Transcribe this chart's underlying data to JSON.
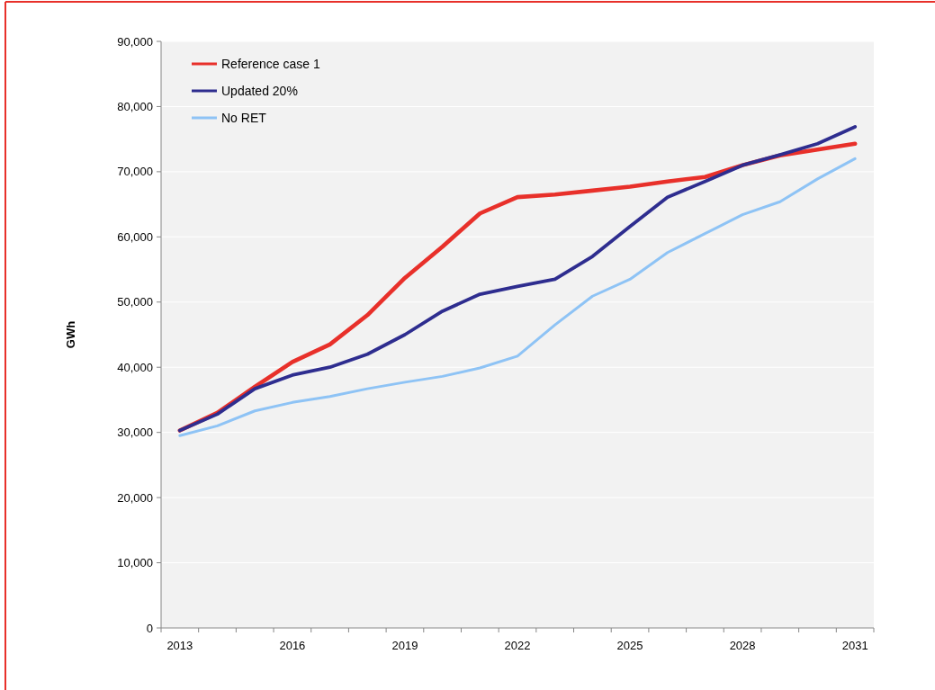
{
  "chart_data": {
    "type": "line",
    "ylabel": "GWh",
    "categories": [
      "2013",
      null,
      null,
      "2016",
      null,
      null,
      "2019",
      null,
      null,
      "2022",
      null,
      null,
      "2025",
      null,
      null,
      "2028",
      null,
      null,
      "2031"
    ],
    "ylim": [
      0,
      90000
    ],
    "yticks": [
      {
        "value": 0,
        "label": "0"
      },
      {
        "value": 10000,
        "label": "10,000"
      },
      {
        "value": 20000,
        "label": "20,000"
      },
      {
        "value": 30000,
        "label": "30,000"
      },
      {
        "value": 40000,
        "label": "40,000"
      },
      {
        "value": 50000,
        "label": "50,000"
      },
      {
        "value": 60000,
        "label": "60,000"
      },
      {
        "value": 70000,
        "label": "70,000"
      },
      {
        "value": 80000,
        "label": "80,000"
      },
      {
        "value": 90000,
        "label": "90,000"
      }
    ],
    "grid": "y",
    "legend": "top left",
    "marker": "none",
    "line_style": "solid",
    "series": [
      {
        "name": "Reference case 1",
        "color": "#e8302a",
        "values": [
          30300,
          33000,
          37000,
          40800,
          43500,
          48000,
          53700,
          58500,
          63600,
          66100,
          66500,
          67100,
          67700,
          68500,
          69200,
          71000,
          72500,
          73400,
          74300
        ]
      },
      {
        "name": "Updated 20%",
        "color": "#2e2d8f",
        "values": [
          30300,
          32800,
          36700,
          38800,
          40000,
          42000,
          45000,
          48600,
          51200,
          52400,
          53500,
          57000,
          61600,
          66100,
          68500,
          71000,
          72600,
          74300,
          76900
        ]
      },
      {
        "name": "No RET",
        "color": "#8ec3f5",
        "values": [
          29500,
          31000,
          33300,
          34600,
          35500,
          36700,
          37700,
          38600,
          39900,
          41700,
          46500,
          50900,
          53500,
          57600,
          60500,
          63400,
          65400,
          68900,
          72000
        ]
      }
    ]
  }
}
